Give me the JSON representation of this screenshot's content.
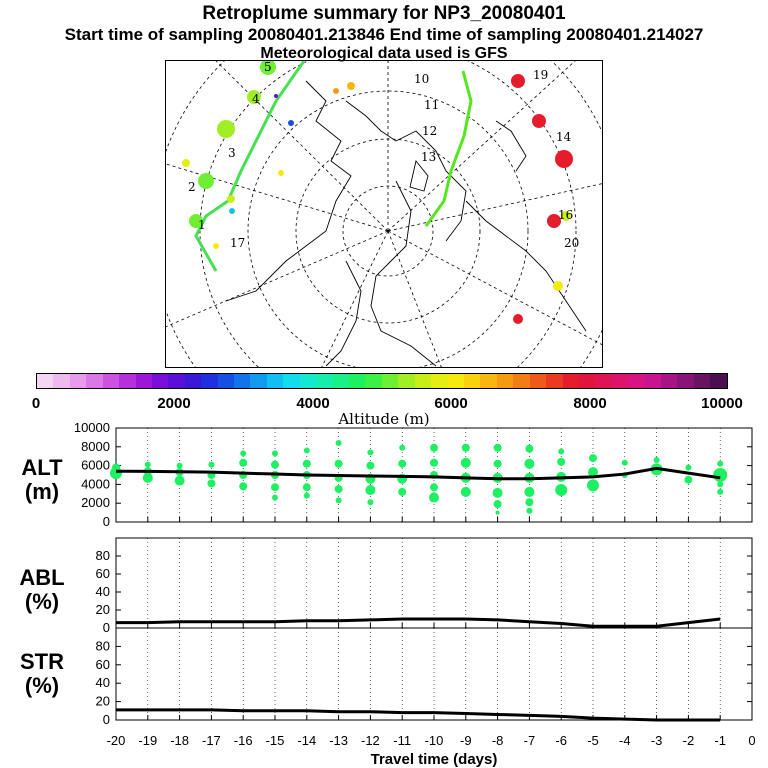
{
  "title": "Retroplume summary for NP3_20080401",
  "subtitle": "Start time of sampling 20080401.213846     End time of sampling 20080401.214027",
  "met_note": "Meteorological data used is GFS",
  "colorbar": {
    "label": "Altitude (m)",
    "ticks": [
      "0",
      "2000",
      "4000",
      "6000",
      "8000",
      "10000"
    ],
    "colors": [
      "#f4d6f4",
      "#efb9f0",
      "#e89aec",
      "#dc78e6",
      "#cc52e0",
      "#b72fdb",
      "#9c16d8",
      "#7a0ed8",
      "#5a10d8",
      "#3a18d8",
      "#2030e0",
      "#1450e4",
      "#1274ea",
      "#129aef",
      "#12bff2",
      "#12dcee",
      "#13e8d2",
      "#15eeac",
      "#19f085",
      "#1df061",
      "#3cf046",
      "#6ef032",
      "#a2ee24",
      "#c8ee18",
      "#e4ee10",
      "#f6ea0c",
      "#f8d20c",
      "#f8b60e",
      "#f69a12",
      "#f27c16",
      "#ee5a1a",
      "#ea3a22",
      "#e41c2c",
      "#e0143c",
      "#de1454",
      "#dc146c",
      "#d81484",
      "#c8148e",
      "#a81488",
      "#881478",
      "#681462",
      "#4a1050"
    ]
  },
  "map": {
    "labels": [
      {
        "text": "1"
      },
      {
        "text": "2"
      },
      {
        "text": "3"
      },
      {
        "text": "4"
      },
      {
        "text": "5"
      },
      {
        "text": "10"
      },
      {
        "text": "11"
      },
      {
        "text": "12"
      },
      {
        "text": "13"
      },
      {
        "text": "14"
      },
      {
        "text": "16"
      },
      {
        "text": "17"
      },
      {
        "text": "19"
      },
      {
        "text": "20"
      }
    ]
  },
  "panels": [
    {
      "label": "ALT\n(m)",
      "yticks": [
        "0",
        "2000",
        "4000",
        "6000",
        "8000",
        "10000"
      ]
    },
    {
      "label": "ABL\n(%)",
      "yticks": [
        "0",
        "20",
        "40",
        "60",
        "80"
      ]
    },
    {
      "label": "STR\n(%)",
      "yticks": [
        "0",
        "20",
        "40",
        "60",
        "80"
      ]
    }
  ],
  "chart_data": [
    {
      "type": "line",
      "title": "ALT (m)",
      "ylabel": "ALT (m)",
      "xlabel": "",
      "ylim": [
        0,
        10000
      ],
      "x": [
        -20,
        -19,
        -18,
        -17,
        -16,
        -15,
        -14,
        -13,
        -12,
        -11,
        -10,
        -9,
        -8,
        -7,
        -6,
        -5,
        -4,
        -3,
        -2,
        -1
      ],
      "series": [
        {
          "name": "median altitude",
          "values": [
            5400,
            5380,
            5350,
            5300,
            5200,
            5100,
            5000,
            4950,
            4900,
            4850,
            4800,
            4700,
            4600,
            4600,
            4700,
            4800,
            5100,
            5700,
            5200,
            4700
          ]
        }
      ],
      "scatter_clusters": [
        {
          "x": -20,
          "y": [
            5200,
            5800
          ],
          "size": [
            6,
            4
          ]
        },
        {
          "x": -19,
          "y": [
            4700,
            5400,
            6100
          ],
          "size": [
            5,
            4,
            3
          ]
        },
        {
          "x": -18,
          "y": [
            4400,
            5300,
            6000
          ],
          "size": [
            5,
            4,
            3
          ]
        },
        {
          "x": -17,
          "y": [
            4100,
            5000,
            6100
          ],
          "size": [
            4,
            4,
            3
          ]
        },
        {
          "x": -16,
          "y": [
            3800,
            5000,
            6300,
            7300
          ],
          "size": [
            4,
            4,
            4,
            3
          ]
        },
        {
          "x": -15,
          "y": [
            2600,
            3700,
            5000,
            6100,
            7300
          ],
          "size": [
            3,
            4,
            4,
            4,
            3
          ]
        },
        {
          "x": -14,
          "y": [
            2800,
            3700,
            5000,
            6200,
            7600
          ],
          "size": [
            3,
            4,
            4,
            4,
            3
          ]
        },
        {
          "x": -13,
          "y": [
            2300,
            3500,
            4700,
            6200,
            8400
          ],
          "size": [
            3,
            4,
            4,
            4,
            3
          ]
        },
        {
          "x": -12,
          "y": [
            2100,
            3400,
            4600,
            6000,
            7400
          ],
          "size": [
            3,
            5,
            5,
            4,
            3
          ]
        },
        {
          "x": -11,
          "y": [
            3200,
            4600,
            6200,
            7900
          ],
          "size": [
            4,
            5,
            4,
            3
          ]
        },
        {
          "x": -10,
          "y": [
            2600,
            3700,
            5000,
            6300,
            7900
          ],
          "size": [
            5,
            4,
            4,
            4,
            4
          ]
        },
        {
          "x": -9,
          "y": [
            3200,
            4700,
            6300,
            7900
          ],
          "size": [
            5,
            5,
            5,
            4
          ]
        },
        {
          "x": -8,
          "y": [
            1000,
            1900,
            3100,
            4700,
            6200,
            7900
          ],
          "size": [
            2,
            4,
            5,
            5,
            4,
            4
          ]
        },
        {
          "x": -7,
          "y": [
            1200,
            2100,
            3200,
            4700,
            6200,
            7800
          ],
          "size": [
            3,
            4,
            5,
            5,
            5,
            4
          ]
        },
        {
          "x": -6,
          "y": [
            3400,
            4800,
            6400,
            7500
          ],
          "size": [
            6,
            5,
            4,
            3
          ]
        },
        {
          "x": -5,
          "y": [
            3900,
            5300,
            6800
          ],
          "size": [
            6,
            5,
            4
          ]
        },
        {
          "x": -4,
          "y": [
            5000,
            6300
          ],
          "size": [
            3,
            3
          ]
        },
        {
          "x": -3,
          "y": [
            5600,
            6600
          ],
          "size": [
            6,
            3
          ]
        },
        {
          "x": -2,
          "y": [
            4500,
            5800
          ],
          "size": [
            4,
            3
          ]
        },
        {
          "x": -1,
          "y": [
            3200,
            4000,
            5000,
            6200
          ],
          "size": [
            3,
            3,
            7,
            3
          ]
        }
      ]
    },
    {
      "type": "line",
      "title": "ABL (%)",
      "ylabel": "ABL (%)",
      "ylim": [
        0,
        100
      ],
      "x": [
        -20,
        -19,
        -18,
        -17,
        -16,
        -15,
        -14,
        -13,
        -12,
        -11,
        -10,
        -9,
        -8,
        -7,
        -6,
        -5,
        -4,
        -3,
        -2,
        -1
      ],
      "series": [
        {
          "name": "ABL fraction",
          "values": [
            6,
            6,
            7,
            7,
            7,
            7,
            8,
            8,
            9,
            10,
            10,
            10,
            9,
            7,
            5,
            2,
            2,
            2,
            6,
            10
          ]
        }
      ]
    },
    {
      "type": "line",
      "title": "STR (%)",
      "ylabel": "STR (%)",
      "xlabel": "Travel time (days)",
      "ylim": [
        0,
        100
      ],
      "x": [
        -20,
        -19,
        -18,
        -17,
        -16,
        -15,
        -14,
        -13,
        -12,
        -11,
        -10,
        -9,
        -8,
        -7,
        -6,
        -5,
        -4,
        -3,
        -2,
        -1
      ],
      "series": [
        {
          "name": "stratospheric fraction",
          "values": [
            11,
            11,
            11,
            11,
            10,
            10,
            10,
            9,
            9,
            8,
            8,
            7,
            6,
            5,
            4,
            2,
            1,
            0,
            0,
            0
          ]
        }
      ],
      "xticks": [
        "-20",
        "-19",
        "-18",
        "-17",
        "-16",
        "-15",
        "-14",
        "-13",
        "-12",
        "-11",
        "-10",
        "-9",
        "-8",
        "-7",
        "-6",
        "-5",
        "-4",
        "-3",
        "-2",
        "-1",
        "0"
      ]
    }
  ]
}
